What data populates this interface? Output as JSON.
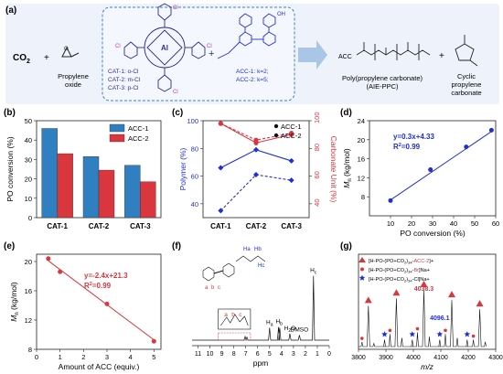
{
  "scheme": {
    "label": "(a)",
    "co2": "CO",
    "co2_sub": "2",
    "plus": "+",
    "propylene_oxide": [
      "Propylene",
      "oxide"
    ],
    "catalysts": [
      "CAT-1: o-Cl",
      "CAT-2: m-Cl",
      "CAT-3: p-Cl"
    ],
    "acc": [
      "ACC-1: k=2;",
      "ACC-2: k=5;"
    ],
    "metal": "Al",
    "cl": "Cl",
    "oh": "OH",
    "product_acc": "ACC",
    "product_name": [
      "Poly(propylene carbonate)",
      "(AIE-PPC)"
    ],
    "cyclic": [
      "Cyclic",
      "propylene",
      "carbonate"
    ],
    "colors": {
      "scheme_bg": "#eef3fb",
      "box_border": "#3b82c4",
      "arrow": "#a9c6e6",
      "cat": "#2d2d8f",
      "acc": "#1f2fd6"
    }
  },
  "panel_b": {
    "label": "(b)",
    "chart_data": {
      "type": "bar",
      "categories": [
        "CAT-1",
        "CAT-2",
        "CAT-3"
      ],
      "series": [
        {
          "name": "ACC-1",
          "values": [
            46,
            31.5,
            27
          ],
          "color": "#2f7fc1"
        },
        {
          "name": "ACC-2",
          "values": [
            33,
            24.5,
            18.5
          ],
          "color": "#d9363e"
        }
      ],
      "ylabel": "PO conversion (%)",
      "ylim": [
        0,
        50
      ],
      "yticks": [
        0,
        10,
        20,
        30,
        40,
        50
      ],
      "legend": "top-right"
    }
  },
  "panel_c": {
    "label": "(c)",
    "chart_data": {
      "type": "line",
      "categories": [
        "CAT-1",
        "CAT-2",
        "CAT-3"
      ],
      "series": [
        {
          "name": "ACC-1",
          "axis": "left",
          "values": [
            66,
            79,
            71
          ],
          "style": "solid",
          "color": "#1f2fd6"
        },
        {
          "name": "ACC-2",
          "axis": "left",
          "values": [
            35,
            61,
            57
          ],
          "style": "dashed",
          "color": "#1f2fd6"
        },
        {
          "name": "",
          "axis": "right",
          "values": [
            98,
            84,
            90
          ],
          "style": "solid",
          "color": "#d9363e"
        },
        {
          "name": "",
          "axis": "right",
          "values": [
            98,
            86,
            91
          ],
          "style": "dashed",
          "color": "#d9363e"
        }
      ],
      "ylabel_left": "Polymer (%)",
      "ylabel_right": "Carbonate Unit (%)",
      "ylim_left": [
        30,
        100
      ],
      "ylim_right": [
        30,
        100
      ],
      "yticks": [
        40,
        60,
        80,
        100
      ],
      "legend": "top-right",
      "legend_entries": [
        "ACC-1",
        "ACC-2"
      ]
    }
  },
  "panel_d": {
    "label": "(d)",
    "chart_data": {
      "type": "scatter",
      "points": [
        [
          10,
          7.2
        ],
        [
          29,
          13.7
        ],
        [
          46,
          18.5
        ],
        [
          58,
          22
        ]
      ],
      "fit": {
        "x": [
          10,
          58
        ],
        "y": [
          7.33,
          21.73
        ]
      },
      "equation": "y=0.3x+4.33",
      "r2_base": "R",
      "r2_sup": "2",
      "r2_value": "=0.99",
      "xlabel": "PO conversion (%)",
      "ylabel_main": "M",
      "ylabel_sub": "n",
      "ylabel_unit": " (kg/mol)",
      "xlim": [
        0,
        60
      ],
      "ylim": [
        4,
        24
      ],
      "xticks": [
        10,
        20,
        30,
        40,
        50,
        60
      ],
      "yticks": [
        8,
        12,
        16,
        20,
        24
      ],
      "color": "#1f2fd6"
    }
  },
  "panel_e": {
    "label": "(e)",
    "chart_data": {
      "type": "scatter",
      "points": [
        [
          0.5,
          20.4
        ],
        [
          1,
          18.6
        ],
        [
          3,
          14.2
        ],
        [
          5,
          9.1
        ]
      ],
      "fit": {
        "x": [
          0.5,
          5
        ],
        "y": [
          20.1,
          9.3
        ]
      },
      "equation": "y=-2.4x+21.3",
      "r2_base": "R",
      "r2_sup": "2",
      "r2_value": "=0.99",
      "xlabel": "Amount of ACC (equiv.)",
      "ylabel_main": "M",
      "ylabel_sub": "n",
      "ylabel_unit": " (kg/mol)",
      "xlim": [
        0,
        5.3
      ],
      "ylim": [
        8,
        21
      ],
      "xticks": [
        0,
        1,
        2,
        3,
        4,
        5
      ],
      "yticks": [
        8,
        12,
        16,
        20
      ],
      "color": "#d9363e"
    }
  },
  "panel_f": {
    "label": "(f)",
    "chart_data": {
      "type": "line",
      "xlabel": "ppm",
      "xlim": [
        11.5,
        0
      ],
      "xticks": [
        11,
        10,
        9,
        8,
        7,
        6,
        5,
        4,
        3,
        2,
        1,
        0
      ],
      "peaks": [
        {
          "ppm": 7.05,
          "height": 0.05
        },
        {
          "ppm": 6.9,
          "height": 0.04
        },
        {
          "ppm": 5.0,
          "height": 0.17
        },
        {
          "ppm": 4.25,
          "height": 0.18
        },
        {
          "ppm": 4.15,
          "height": 0.17
        },
        {
          "ppm": 3.3,
          "height": 0.09
        },
        {
          "ppm": 2.5,
          "height": 0.07
        },
        {
          "ppm": 1.32,
          "height": 0.88
        }
      ],
      "labels": [
        {
          "text": "H",
          "sub": "a",
          "ppm": 5.0
        },
        {
          "text": "H",
          "sub": "b",
          "ppm": 4.2
        },
        {
          "text": "H",
          "sub": "2",
          "suffix": "O",
          "ppm": 3.3
        },
        {
          "text": "DMSO",
          "ppm": 2.5
        },
        {
          "text": "H",
          "sub": "c",
          "ppm": 1.32
        }
      ],
      "inset_letters": [
        "a",
        "b",
        "c"
      ],
      "chain_labels": [
        "H",
        "a",
        "H",
        "b",
        "H",
        "c"
      ]
    }
  },
  "panel_g": {
    "label": "(g)",
    "chart_data": {
      "type": "line",
      "xlabel": "m/z",
      "xlim": [
        3800,
        4300
      ],
      "xticks": [
        3800,
        3900,
        4000,
        4100,
        4200,
        4300
      ],
      "legend": [
        {
          "marker": "triangle",
          "color": "#d9363e",
          "prefix": "[H-PO-(PO+CO",
          "sub": "2",
          "mid": ")",
          "sub2": "34",
          "suffix": "-",
          "highlight": "ACC-2",
          "end": "]+"
        },
        {
          "marker": "circle",
          "color": "#d9363e",
          "prefix": "[H-PO-(PO+CO",
          "sub": "2",
          "mid": ")",
          "sub2": "34",
          "suffix": "-",
          "highlight": "Br",
          "end": "]Na+"
        },
        {
          "marker": "star",
          "color": "#1f2fd6",
          "prefix": "[H-PO-(PO+CO",
          "sub": "2",
          "mid": ")",
          "sub2": "34",
          "suffix": "-Cl]Na+",
          "highlight": "",
          "end": ""
        }
      ],
      "peak_groups": [
        {
          "mz": 3836,
          "main": 0.72,
          "side": 0.08
        },
        {
          "mz": 3938,
          "main": 0.85,
          "side": 0.22
        },
        {
          "mz": 4038.3,
          "main": 1.0,
          "side": 0.25
        },
        {
          "mz": 4140,
          "main": 0.82,
          "side": 0.22
        },
        {
          "mz": 4242,
          "main": 0.66,
          "side": 0.12
        }
      ],
      "stars": [
        3895,
        3996,
        4096.1,
        4196
      ],
      "annotations": [
        {
          "text": "4038.3",
          "mz": 4038.3,
          "color": "#d9363e"
        },
        {
          "text": "4096.1",
          "mz": 4096.1,
          "color": "#1f2fd6"
        }
      ]
    }
  }
}
